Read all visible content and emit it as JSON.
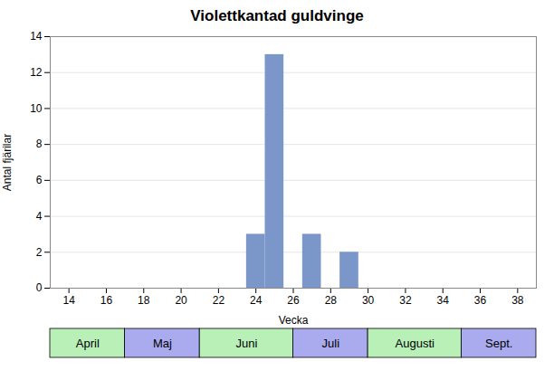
{
  "chart_data": {
    "type": "bar",
    "title": "Violettkantad guldvinge",
    "xlabel": "Vecka",
    "ylabel": "Antal fjärilar",
    "x": [
      24,
      25,
      27,
      29
    ],
    "values": [
      3,
      13,
      3,
      2
    ],
    "color": "#7b96c8",
    "xlim": [
      13,
      39
    ],
    "ylim": [
      0,
      14
    ],
    "xticks": [
      14,
      16,
      18,
      20,
      22,
      24,
      26,
      28,
      30,
      32,
      34,
      36,
      38
    ],
    "yticks": [
      0,
      2,
      4,
      6,
      8,
      10,
      12,
      14
    ],
    "grid": true,
    "month_bands": [
      {
        "label": "April",
        "start": 13,
        "end": 17,
        "color": "#b8f0b8"
      },
      {
        "label": "Maj",
        "start": 17,
        "end": 21,
        "color": "#aaaaee"
      },
      {
        "label": "Juni",
        "start": 21,
        "end": 26,
        "color": "#b8f0b8"
      },
      {
        "label": "Juli",
        "start": 26,
        "end": 30,
        "color": "#aaaaee"
      },
      {
        "label": "Augusti",
        "start": 30,
        "end": 35,
        "color": "#b8f0b8"
      },
      {
        "label": "Sept.",
        "start": 35,
        "end": 39,
        "color": "#aaaaee"
      }
    ]
  }
}
